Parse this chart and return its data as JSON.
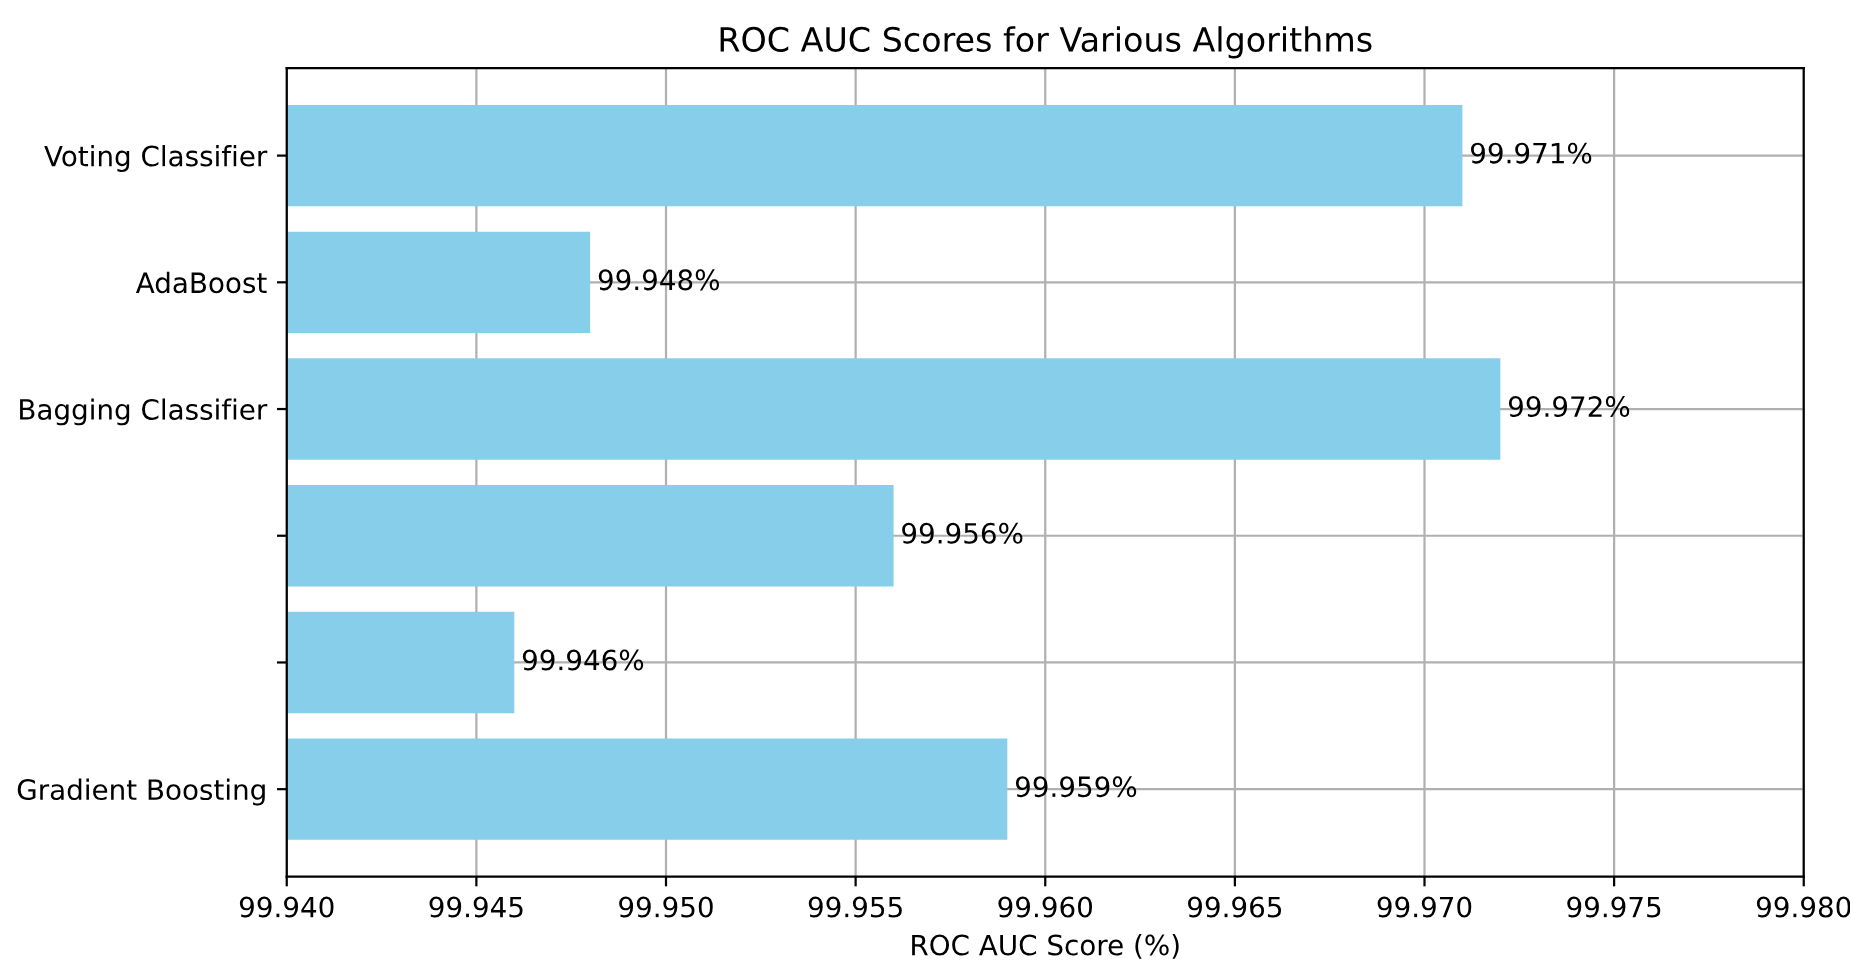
{
  "chart_data": {
    "type": "bar",
    "orientation": "horizontal",
    "title": "ROC AUC Scores for Various Algorithms",
    "xlabel": "ROC AUC Score (%)",
    "categories": [
      "Voting Classifier",
      "AdaBoost",
      "Bagging Classifier",
      null,
      null,
      "Gradient Boosting"
    ],
    "values": [
      99.971,
      99.948,
      99.972,
      99.956,
      99.946,
      99.959
    ],
    "value_labels": [
      "99.971%",
      "99.948%",
      "99.972%",
      "99.956%",
      "99.946%",
      "99.959%"
    ],
    "color": "#87ceeb",
    "xlim": [
      99.94,
      99.98
    ],
    "xticks": [
      {
        "value": 99.94,
        "label": "99.940"
      },
      {
        "value": 99.945,
        "label": "99.945"
      },
      {
        "value": 99.95,
        "label": "99.950"
      },
      {
        "value": 99.955,
        "label": "99.955"
      },
      {
        "value": 99.96,
        "label": "99.960"
      },
      {
        "value": 99.965,
        "label": "99.965"
      },
      {
        "value": 99.97,
        "label": "99.970"
      },
      {
        "value": 99.975,
        "label": "99.975"
      },
      {
        "value": 99.98,
        "label": "99.980"
      }
    ],
    "grid": true
  }
}
